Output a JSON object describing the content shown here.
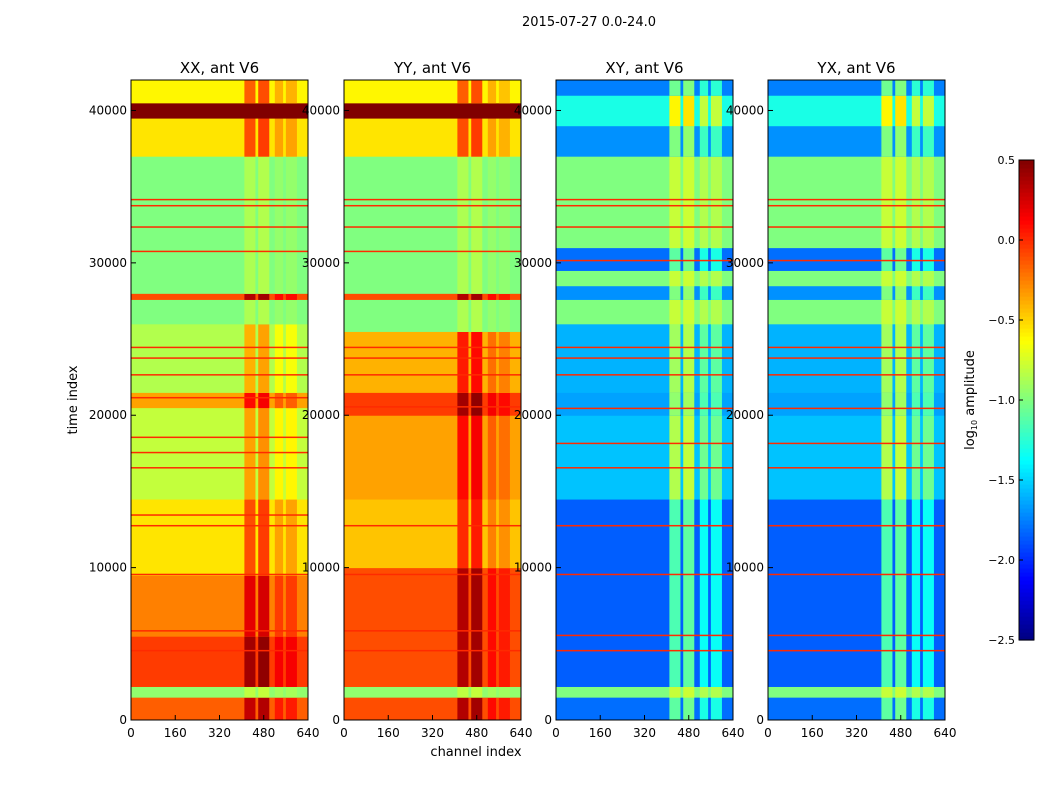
{
  "chart_data": {
    "type": "heatmap",
    "suptitle": "2015-07-27 0.0-24.0",
    "xlabel": "channel index",
    "ylabel": "time index",
    "xlim": [
      0,
      640
    ],
    "ylim": [
      0,
      42000
    ],
    "xticks": [
      0,
      160,
      320,
      480,
      640
    ],
    "yticks": [
      0,
      10000,
      20000,
      30000,
      40000
    ],
    "colorbar": {
      "label": "log10 amplitude",
      "label_main": "log",
      "label_sub": "10",
      "label_rest": " amplitude",
      "vmin": -2.5,
      "vmax": 0.5,
      "ticks": [
        "0.5",
        "0.0",
        "−0.5",
        "−1.0",
        "−1.5",
        "−2.0",
        "−2.5"
      ],
      "tick_values": [
        0.5,
        0,
        -0.5,
        -1,
        -1.5,
        -2,
        -2.5
      ],
      "colormap": "jet"
    },
    "panels": [
      {
        "title": "XX, ant V6",
        "rows": [
          [
            0,
            1500,
            -0.15
          ],
          [
            1500,
            2200,
            -0.95
          ],
          [
            2200,
            5500,
            -0.05
          ],
          [
            5500,
            9500,
            -0.25
          ],
          [
            9500,
            14500,
            -0.55
          ],
          [
            14500,
            20500,
            -0.8
          ],
          [
            20500,
            21500,
            -0.35
          ],
          [
            21500,
            26000,
            -0.85
          ],
          [
            26000,
            27600,
            -1.0
          ],
          [
            27600,
            28000,
            -0.1
          ],
          [
            28000,
            37000,
            -1.0
          ],
          [
            37000,
            39500,
            -0.55
          ],
          [
            39500,
            40500,
            0.5
          ],
          [
            40500,
            42000,
            -0.6
          ]
        ],
        "channel_bands": [
          [
            410,
            450,
            0.45
          ],
          [
            460,
            500,
            0.5
          ],
          [
            520,
            550,
            0.2
          ],
          [
            560,
            600,
            0.2
          ]
        ],
        "lines": [
          4600,
          5900,
          9600,
          12800,
          13500,
          16600,
          17600,
          18600,
          21200,
          22700,
          23800,
          24500,
          30800,
          32400,
          33800,
          34200
        ]
      },
      {
        "title": "YY, ant V6",
        "rows": [
          [
            0,
            1500,
            -0.1
          ],
          [
            1500,
            2200,
            -0.95
          ],
          [
            2200,
            10000,
            -0.1
          ],
          [
            10000,
            14500,
            -0.45
          ],
          [
            14500,
            20000,
            -0.35
          ],
          [
            20000,
            21500,
            -0.05
          ],
          [
            21500,
            25500,
            -0.4
          ],
          [
            25500,
            27600,
            -1.0
          ],
          [
            27600,
            28000,
            -0.1
          ],
          [
            28000,
            37000,
            -1.0
          ],
          [
            37000,
            39500,
            -0.55
          ],
          [
            39500,
            40500,
            0.5
          ],
          [
            40500,
            42000,
            -0.6
          ]
        ],
        "channel_bands": [
          [
            410,
            450,
            0.45
          ],
          [
            460,
            500,
            0.5
          ],
          [
            520,
            550,
            0.2
          ],
          [
            560,
            600,
            0.15
          ]
        ],
        "lines": [
          4600,
          5900,
          9600,
          12800,
          20600,
          22700,
          23800,
          24500,
          30800,
          32400,
          33800,
          34200
        ]
      },
      {
        "title": "XY, ant V6",
        "rows": [
          [
            0,
            1500,
            -1.8
          ],
          [
            1500,
            2200,
            -1.0
          ],
          [
            2200,
            14500,
            -1.85
          ],
          [
            14500,
            20000,
            -1.55
          ],
          [
            20000,
            21500,
            -1.65
          ],
          [
            21500,
            26000,
            -1.6
          ],
          [
            26000,
            27600,
            -1.0
          ],
          [
            27600,
            28500,
            -1.7
          ],
          [
            28500,
            29500,
            -1.0
          ],
          [
            29500,
            31000,
            -1.8
          ],
          [
            31000,
            37000,
            -1.0
          ],
          [
            37000,
            39000,
            -1.7
          ],
          [
            39000,
            41000,
            -1.3
          ],
          [
            41000,
            42000,
            -1.75
          ]
        ],
        "channel_bands": [
          [
            410,
            450,
            0.7
          ],
          [
            460,
            500,
            0.75
          ],
          [
            520,
            550,
            0.5
          ],
          [
            560,
            600,
            0.5
          ]
        ],
        "lines": [
          4600,
          5600,
          9600,
          12800,
          16600,
          18200,
          20500,
          22700,
          23800,
          24500,
          30200,
          32400,
          33800,
          34200
        ]
      },
      {
        "title": "YX, ant V6",
        "rows": [
          [
            0,
            1500,
            -1.8
          ],
          [
            1500,
            2200,
            -1.0
          ],
          [
            2200,
            14500,
            -1.85
          ],
          [
            14500,
            20000,
            -1.55
          ],
          [
            20000,
            21500,
            -1.65
          ],
          [
            21500,
            26000,
            -1.6
          ],
          [
            26000,
            27600,
            -1.0
          ],
          [
            27600,
            28500,
            -1.7
          ],
          [
            28500,
            29500,
            -1.0
          ],
          [
            29500,
            31000,
            -1.8
          ],
          [
            31000,
            37000,
            -1.0
          ],
          [
            37000,
            39000,
            -1.7
          ],
          [
            39000,
            41000,
            -1.3
          ],
          [
            41000,
            42000,
            -1.75
          ]
        ],
        "channel_bands": [
          [
            410,
            450,
            0.7
          ],
          [
            460,
            500,
            0.75
          ],
          [
            520,
            550,
            0.5
          ],
          [
            560,
            600,
            0.5
          ]
        ],
        "lines": [
          4600,
          5600,
          9600,
          12800,
          16600,
          18200,
          20500,
          22700,
          23800,
          24500,
          30200,
          32400,
          33800,
          34200
        ]
      }
    ]
  }
}
